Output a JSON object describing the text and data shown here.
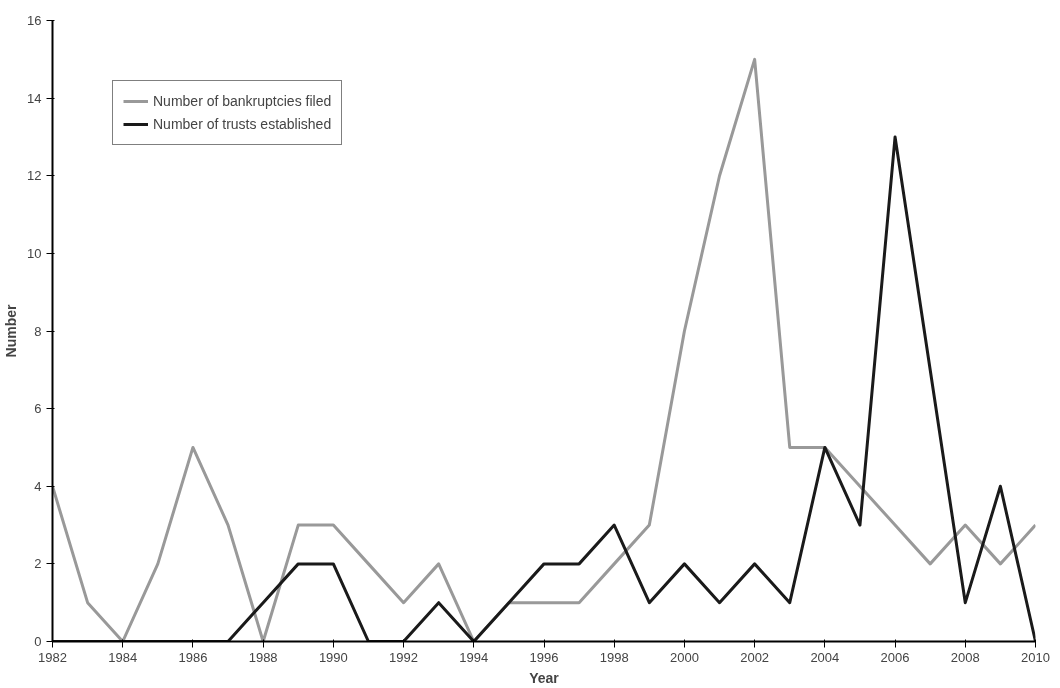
{
  "chart_data": {
    "type": "line",
    "xlabel": "Year",
    "ylabel": "Number",
    "x": [
      1982,
      1983,
      1984,
      1985,
      1986,
      1987,
      1988,
      1989,
      1990,
      1991,
      1992,
      1993,
      1994,
      1995,
      1996,
      1997,
      1998,
      1999,
      2000,
      2001,
      2002,
      2003,
      2004,
      2005,
      2006,
      2007,
      2008,
      2009,
      2010
    ],
    "series": [
      {
        "name": "Number of bankruptcies filed",
        "color": "#999999",
        "values": [
          4,
          1,
          0,
          2,
          5,
          3,
          0,
          3,
          3,
          2,
          1,
          2,
          0,
          1,
          1,
          1,
          2,
          3,
          8,
          12,
          15,
          5,
          5,
          4,
          3,
          2,
          3,
          2,
          3
        ]
      },
      {
        "name": "Number of trusts established",
        "color": "#1a1a1a",
        "values": [
          0,
          0,
          0,
          0,
          0,
          0,
          1,
          2,
          2,
          0,
          0,
          1,
          0,
          1,
          2,
          2,
          3,
          1,
          2,
          1,
          2,
          1,
          5,
          3,
          13,
          7,
          1,
          4,
          0
        ]
      }
    ],
    "xlim": [
      1982,
      2010
    ],
    "xticks": [
      1982,
      1984,
      1986,
      1988,
      1990,
      1992,
      1994,
      1996,
      1998,
      2000,
      2002,
      2004,
      2006,
      2008,
      2010
    ],
    "ylim": [
      0,
      16
    ],
    "yticks": [
      0,
      2,
      4,
      6,
      8,
      10,
      12,
      14,
      16
    ],
    "grid": false,
    "legend": "top left",
    "marker": "none",
    "line_style": "solid"
  }
}
